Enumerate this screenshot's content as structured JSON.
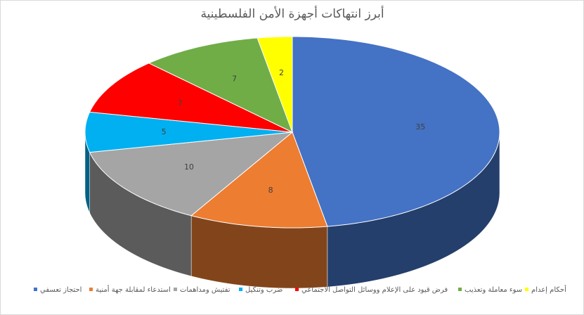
{
  "chart_data": {
    "type": "pie3d",
    "title": "أبرز انتهاكات أجهزة الأمن الفلسطينية",
    "categories": [
      "احتجاز تعسفي",
      "استدعاء لمقابلة جهة أمنية",
      "تفتيش ومداهمات",
      "ضرب وتنكيل",
      "فرض قيود على الإعلام ووسائل التواصل الاجتماعي",
      "سوء معاملة وتعذيب",
      "أحكام إعدام"
    ],
    "values": [
      35,
      8,
      10,
      5,
      7,
      7,
      2
    ],
    "colors": [
      "#4472c4",
      "#ed7d31",
      "#a5a5a5",
      "#00b0f0",
      "#ff0000",
      "#70ad47",
      "#ffff00"
    ],
    "legend": "bottom"
  }
}
